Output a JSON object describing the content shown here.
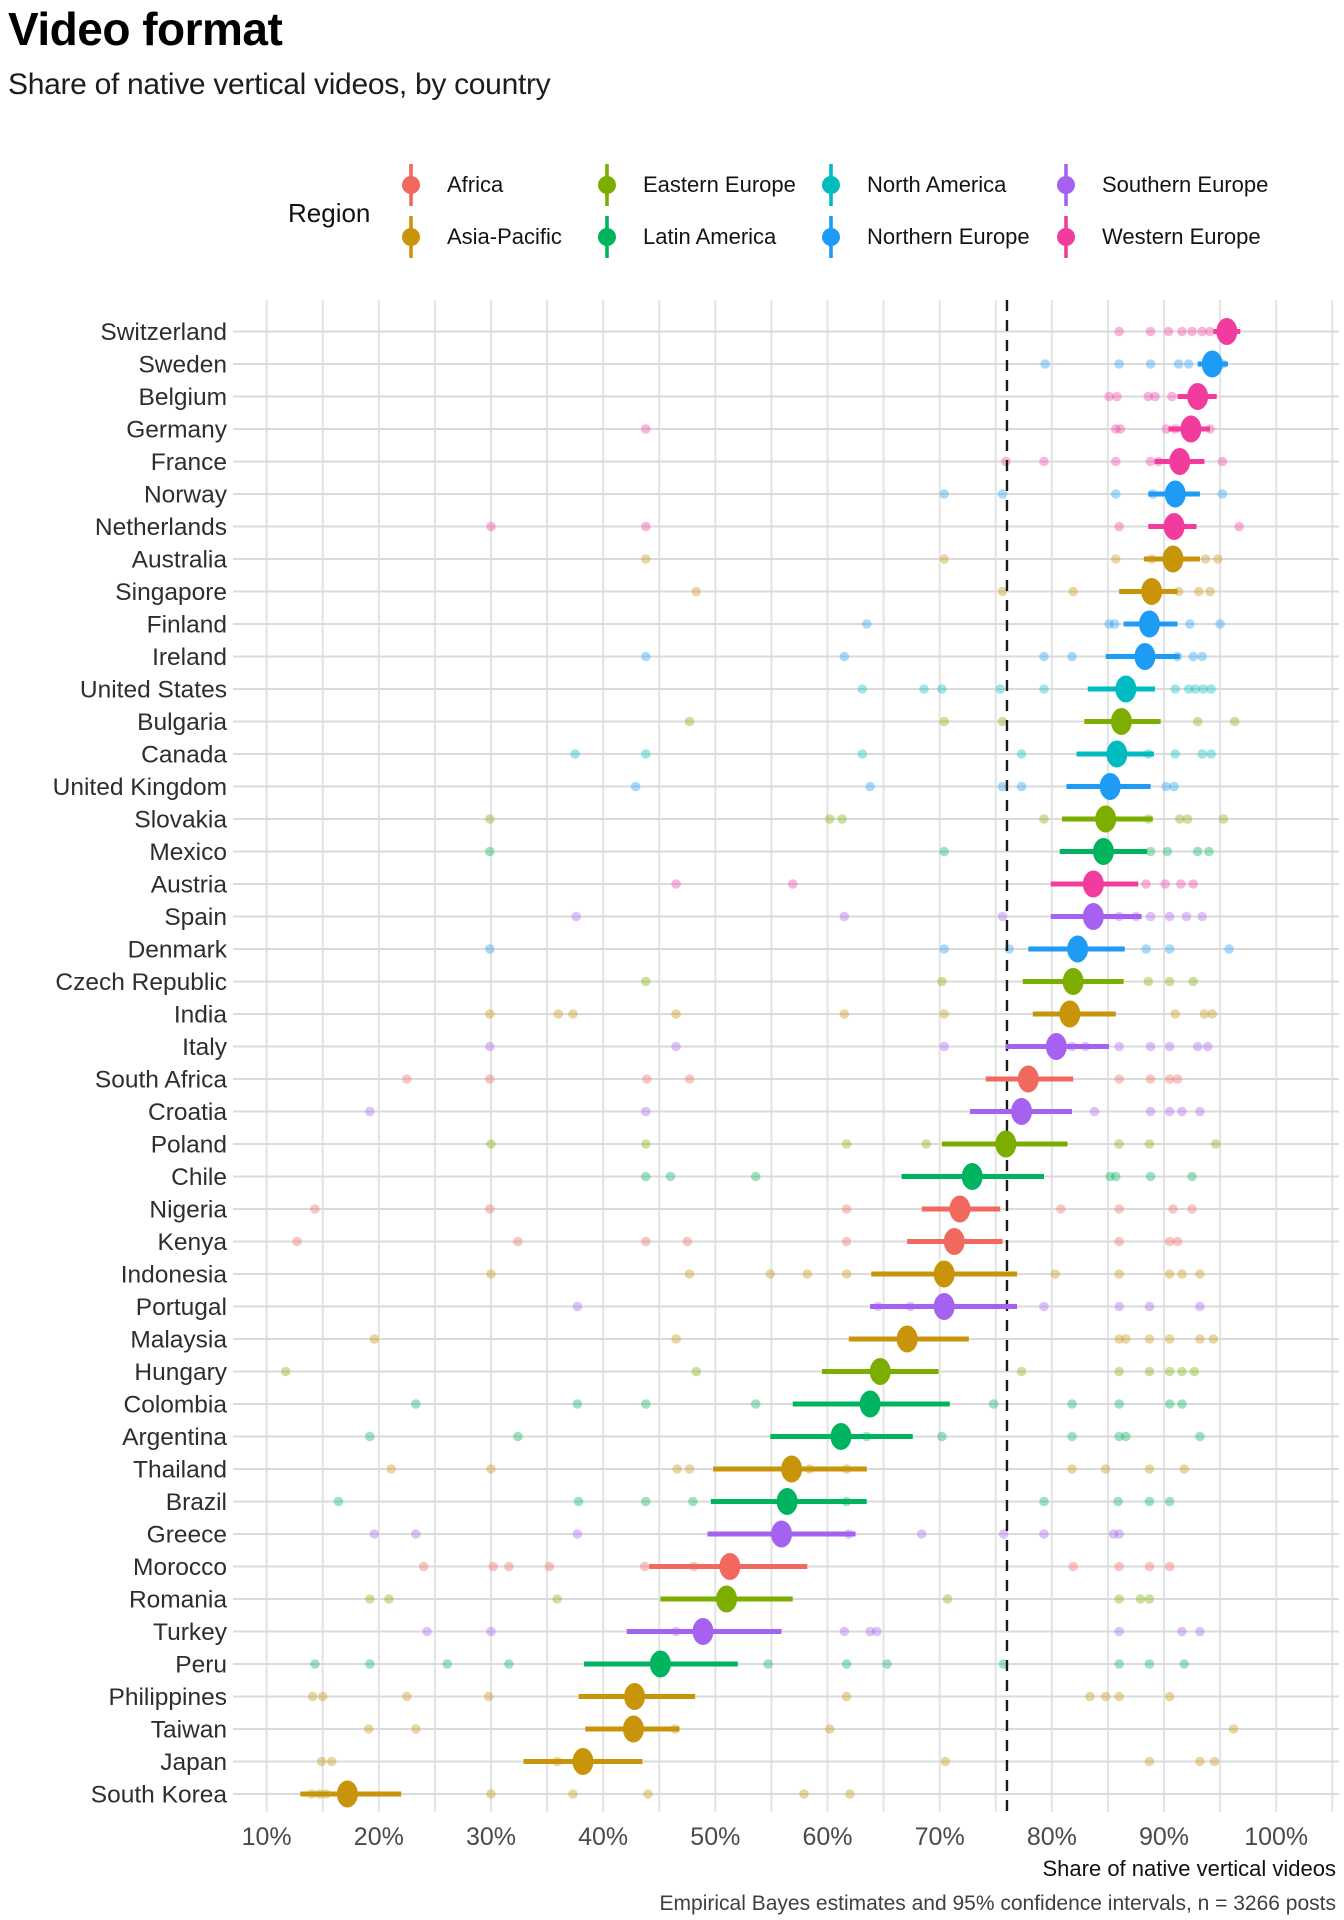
{
  "header": {
    "title": "Video format",
    "subtitle": "Share of native vertical videos, by country"
  },
  "legend": {
    "title": "Region"
  },
  "axis": {
    "label": "Share of native vertical videos"
  },
  "caption": "Empirical Bayes estimates and 95% confidence intervals, n = 3266 posts",
  "chart_data": {
    "type": "scatter",
    "subtype": "dot-range (point estimates with 95% CI and jittered raw points)",
    "title": "Video format",
    "subtitle": "Share of native vertical videos, by country",
    "xlabel": "Share of native vertical videos",
    "x_range": [
      7,
      105.6
    ],
    "grid_step_pct": 5,
    "reference_line_pct": 76,
    "x_ticks": [
      {
        "v": 10,
        "label": "10%"
      },
      {
        "v": 20,
        "label": "20%"
      },
      {
        "v": 30,
        "label": "30%"
      },
      {
        "v": 40,
        "label": "40%"
      },
      {
        "v": 50,
        "label": "50%"
      },
      {
        "v": 60,
        "label": "60%"
      },
      {
        "v": 70,
        "label": "70%"
      },
      {
        "v": 80,
        "label": "80%"
      },
      {
        "v": 90,
        "label": "90%"
      },
      {
        "v": 100,
        "label": "100%"
      }
    ],
    "regions": [
      {
        "name": "Africa",
        "color": "#F1685E"
      },
      {
        "name": "Asia-Pacific",
        "color": "#C8940A"
      },
      {
        "name": "Eastern Europe",
        "color": "#7CAE00"
      },
      {
        "name": "Latin America",
        "color": "#00B45F"
      },
      {
        "name": "North America",
        "color": "#00BCC0"
      },
      {
        "name": "Northern Europe",
        "color": "#1E9BF4"
      },
      {
        "name": "Southern Europe",
        "color": "#A562F0"
      },
      {
        "name": "Western Europe",
        "color": "#F23C9D"
      }
    ],
    "countries": [
      {
        "name": "Switzerland",
        "region": "Western Europe",
        "estimate": 95.6,
        "ci_low": 94.4,
        "ci_high": 96.8,
        "points": [
          86.0,
          88.8,
          90.4,
          91.6,
          92.5,
          93.4,
          94.1
        ]
      },
      {
        "name": "Sweden",
        "region": "Northern Europe",
        "estimate": 94.3,
        "ci_low": 93.0,
        "ci_high": 95.7,
        "points": [
          79.4,
          86.0,
          88.8,
          91.3,
          92.2,
          95.2
        ]
      },
      {
        "name": "Belgium",
        "region": "Western Europe",
        "estimate": 93.0,
        "ci_low": 91.2,
        "ci_high": 94.7,
        "points": [
          85.1,
          85.8,
          88.6,
          89.2,
          90.7
        ]
      },
      {
        "name": "Germany",
        "region": "Western Europe",
        "estimate": 92.4,
        "ci_low": 90.4,
        "ci_high": 94.1,
        "points": [
          43.8,
          85.7,
          86.1,
          90.2,
          91.0,
          94.1
        ]
      },
      {
        "name": "France",
        "region": "Western Europe",
        "estimate": 91.4,
        "ci_low": 89.2,
        "ci_high": 93.6,
        "points": [
          75.9,
          79.3,
          85.7,
          88.8,
          89.5,
          95.2
        ]
      },
      {
        "name": "Norway",
        "region": "Northern Europe",
        "estimate": 91.0,
        "ci_low": 88.6,
        "ci_high": 93.2,
        "points": [
          70.4,
          75.6,
          85.7,
          89.0,
          95.2
        ]
      },
      {
        "name": "Netherlands",
        "region": "Western Europe",
        "estimate": 90.9,
        "ci_low": 88.6,
        "ci_high": 92.9,
        "points": [
          30.0,
          43.8,
          86.0,
          96.7
        ]
      },
      {
        "name": "Australia",
        "region": "Asia-Pacific",
        "estimate": 90.8,
        "ci_low": 88.2,
        "ci_high": 93.2,
        "points": [
          43.8,
          70.4,
          85.7,
          88.9,
          93.7,
          94.8
        ]
      },
      {
        "name": "Singapore",
        "region": "Asia-Pacific",
        "estimate": 88.9,
        "ci_low": 86.0,
        "ci_high": 91.2,
        "points": [
          48.3,
          75.6,
          81.9,
          91.3,
          93.1,
          94.1
        ]
      },
      {
        "name": "Finland",
        "region": "Northern Europe",
        "estimate": 88.7,
        "ci_low": 86.4,
        "ci_high": 91.2,
        "points": [
          63.5,
          85.1,
          85.6,
          92.3,
          95.0
        ]
      },
      {
        "name": "Ireland",
        "region": "Northern Europe",
        "estimate": 88.3,
        "ci_low": 84.8,
        "ci_high": 91.4,
        "points": [
          43.8,
          61.5,
          79.3,
          81.8,
          91.2,
          92.6,
          93.4
        ]
      },
      {
        "name": "United States",
        "region": "North America",
        "estimate": 86.6,
        "ci_low": 83.2,
        "ci_high": 89.2,
        "points": [
          63.1,
          68.6,
          70.2,
          75.4,
          79.3,
          91.0,
          92.2,
          92.8,
          93.5,
          94.2
        ]
      },
      {
        "name": "Bulgaria",
        "region": "Eastern Europe",
        "estimate": 86.2,
        "ci_low": 82.9,
        "ci_high": 89.7,
        "points": [
          47.7,
          70.4,
          75.6,
          93.0,
          96.3
        ]
      },
      {
        "name": "Canada",
        "region": "North America",
        "estimate": 85.8,
        "ci_low": 82.2,
        "ci_high": 89.1,
        "points": [
          37.5,
          43.8,
          63.1,
          77.3,
          88.6,
          91.0,
          93.4,
          94.2
        ]
      },
      {
        "name": "United Kingdom",
        "region": "Northern Europe",
        "estimate": 85.2,
        "ci_low": 81.3,
        "ci_high": 88.8,
        "points": [
          42.9,
          63.8,
          75.6,
          77.3,
          90.2,
          90.9
        ]
      },
      {
        "name": "Slovakia",
        "region": "Eastern Europe",
        "estimate": 84.8,
        "ci_low": 80.9,
        "ci_high": 89.0,
        "points": [
          29.9,
          60.2,
          61.3,
          79.3,
          88.6,
          91.4,
          92.1,
          95.3
        ]
      },
      {
        "name": "Mexico",
        "region": "Latin America",
        "estimate": 84.6,
        "ci_low": 80.7,
        "ci_high": 88.5,
        "points": [
          29.9,
          70.4,
          88.8,
          90.3,
          93.0,
          94.0
        ]
      },
      {
        "name": "Austria",
        "region": "Western Europe",
        "estimate": 83.7,
        "ci_low": 79.9,
        "ci_high": 87.7,
        "points": [
          46.5,
          56.9,
          88.4,
          90.1,
          91.5,
          92.6
        ]
      },
      {
        "name": "Spain",
        "region": "Southern Europe",
        "estimate": 83.7,
        "ci_low": 79.9,
        "ci_high": 88.0,
        "points": [
          37.6,
          61.5,
          75.6,
          86.0,
          87.5,
          88.8,
          90.5,
          92.0,
          93.4
        ]
      },
      {
        "name": "Denmark",
        "region": "Northern Europe",
        "estimate": 82.3,
        "ci_low": 77.9,
        "ci_high": 86.5,
        "points": [
          29.9,
          70.4,
          76.2,
          88.4,
          90.5,
          95.8
        ]
      },
      {
        "name": "Czech Republic",
        "region": "Eastern Europe",
        "estimate": 81.9,
        "ci_low": 77.4,
        "ci_high": 86.4,
        "points": [
          43.8,
          70.2,
          88.6,
          90.5,
          92.6
        ]
      },
      {
        "name": "India",
        "region": "Asia-Pacific",
        "estimate": 81.6,
        "ci_low": 78.3,
        "ci_high": 85.7,
        "points": [
          29.9,
          36.0,
          37.3,
          46.5,
          61.5,
          70.4,
          91.0,
          93.6,
          94.3
        ]
      },
      {
        "name": "Italy",
        "region": "Southern Europe",
        "estimate": 80.4,
        "ci_low": 75.9,
        "ci_high": 85.1,
        "points": [
          29.9,
          46.5,
          70.4,
          81.8,
          83.0,
          86.0,
          88.8,
          90.5,
          93.0,
          93.9
        ]
      },
      {
        "name": "South Africa",
        "region": "Africa",
        "estimate": 77.9,
        "ci_low": 74.1,
        "ci_high": 81.9,
        "points": [
          22.5,
          29.9,
          43.9,
          47.7,
          86.0,
          88.8,
          90.5,
          91.2
        ]
      },
      {
        "name": "Croatia",
        "region": "Southern Europe",
        "estimate": 77.3,
        "ci_low": 72.7,
        "ci_high": 81.8,
        "points": [
          19.2,
          43.8,
          83.8,
          88.8,
          90.5,
          91.6,
          93.2
        ]
      },
      {
        "name": "Poland",
        "region": "Eastern Europe",
        "estimate": 75.9,
        "ci_low": 70.2,
        "ci_high": 81.4,
        "points": [
          30.0,
          43.8,
          61.7,
          68.8,
          86.0,
          88.7,
          94.6
        ]
      },
      {
        "name": "Chile",
        "region": "Latin America",
        "estimate": 72.9,
        "ci_low": 66.6,
        "ci_high": 79.3,
        "points": [
          43.8,
          46.0,
          53.6,
          85.2,
          85.7,
          88.8,
          92.5
        ]
      },
      {
        "name": "Nigeria",
        "region": "Africa",
        "estimate": 71.8,
        "ci_low": 68.4,
        "ci_high": 75.4,
        "points": [
          14.3,
          29.9,
          61.7,
          80.8,
          86.0,
          90.8,
          92.5
        ]
      },
      {
        "name": "Kenya",
        "region": "Africa",
        "estimate": 71.3,
        "ci_low": 67.1,
        "ci_high": 75.6,
        "points": [
          12.7,
          32.4,
          43.8,
          47.5,
          61.7,
          86.0,
          90.5,
          91.2
        ]
      },
      {
        "name": "Indonesia",
        "region": "Asia-Pacific",
        "estimate": 70.4,
        "ci_low": 63.9,
        "ci_high": 76.9,
        "points": [
          30.0,
          47.7,
          54.9,
          58.2,
          61.7,
          80.3,
          86.0,
          90.5,
          91.6,
          93.2
        ]
      },
      {
        "name": "Portugal",
        "region": "Southern Europe",
        "estimate": 70.4,
        "ci_low": 63.8,
        "ci_high": 76.9,
        "points": [
          37.7,
          64.5,
          67.4,
          79.3,
          86.0,
          88.7,
          93.2
        ]
      },
      {
        "name": "Malaysia",
        "region": "Asia-Pacific",
        "estimate": 67.1,
        "ci_low": 61.9,
        "ci_high": 72.6,
        "points": [
          19.6,
          46.5,
          86.0,
          86.6,
          88.7,
          90.5,
          93.2,
          94.4
        ]
      },
      {
        "name": "Hungary",
        "region": "Eastern Europe",
        "estimate": 64.7,
        "ci_low": 59.5,
        "ci_high": 69.9,
        "points": [
          11.7,
          48.3,
          77.3,
          86.0,
          88.7,
          90.5,
          91.6,
          92.7
        ]
      },
      {
        "name": "Colombia",
        "region": "Latin America",
        "estimate": 63.8,
        "ci_low": 56.9,
        "ci_high": 70.9,
        "points": [
          23.3,
          37.7,
          43.8,
          53.6,
          74.8,
          81.8,
          86.0,
          90.5,
          91.6
        ]
      },
      {
        "name": "Argentina",
        "region": "Latin America",
        "estimate": 61.2,
        "ci_low": 54.9,
        "ci_high": 67.6,
        "points": [
          19.2,
          32.4,
          63.5,
          70.2,
          81.8,
          86.0,
          86.6,
          93.2
        ]
      },
      {
        "name": "Thailand",
        "region": "Asia-Pacific",
        "estimate": 56.8,
        "ci_low": 49.8,
        "ci_high": 63.5,
        "points": [
          21.1,
          30.0,
          46.6,
          47.7,
          58.4,
          61.7,
          81.8,
          84.8,
          88.7,
          91.8
        ]
      },
      {
        "name": "Brazil",
        "region": "Latin America",
        "estimate": 56.4,
        "ci_low": 49.6,
        "ci_high": 63.5,
        "points": [
          16.4,
          37.8,
          43.8,
          48.0,
          61.7,
          79.3,
          85.9,
          88.7,
          90.5
        ]
      },
      {
        "name": "Greece",
        "region": "Southern Europe",
        "estimate": 55.9,
        "ci_low": 49.3,
        "ci_high": 62.5,
        "points": [
          19.6,
          23.3,
          37.7,
          61.9,
          68.4,
          75.7,
          79.3,
          85.5,
          86.0
        ]
      },
      {
        "name": "Morocco",
        "region": "Africa",
        "estimate": 51.3,
        "ci_low": 44.1,
        "ci_high": 58.2,
        "points": [
          24.0,
          30.2,
          31.6,
          35.2,
          43.7,
          48.1,
          81.9,
          86.0,
          88.7,
          90.5
        ]
      },
      {
        "name": "Romania",
        "region": "Eastern Europe",
        "estimate": 51.0,
        "ci_low": 45.1,
        "ci_high": 56.9,
        "points": [
          19.2,
          20.9,
          35.9,
          70.7,
          86.0,
          87.9,
          88.7
        ]
      },
      {
        "name": "Turkey",
        "region": "Southern Europe",
        "estimate": 48.9,
        "ci_low": 42.1,
        "ci_high": 55.9,
        "points": [
          24.3,
          30.0,
          46.5,
          61.5,
          63.8,
          64.4,
          86.0,
          91.6,
          93.2
        ]
      },
      {
        "name": "Peru",
        "region": "Latin America",
        "estimate": 45.1,
        "ci_low": 38.3,
        "ci_high": 52.0,
        "points": [
          14.3,
          19.2,
          26.1,
          31.6,
          54.7,
          61.7,
          65.3,
          75.7,
          86.0,
          88.7,
          91.8
        ]
      },
      {
        "name": "Philippines",
        "region": "Asia-Pacific",
        "estimate": 42.8,
        "ci_low": 37.8,
        "ci_high": 48.2,
        "points": [
          14.1,
          15.0,
          22.5,
          29.8,
          61.7,
          83.4,
          84.8,
          86.0,
          90.5
        ]
      },
      {
        "name": "Taiwan",
        "region": "Asia-Pacific",
        "estimate": 42.7,
        "ci_low": 38.4,
        "ci_high": 46.8,
        "points": [
          19.1,
          23.3,
          46.4,
          60.2,
          96.2
        ]
      },
      {
        "name": "Japan",
        "region": "Asia-Pacific",
        "estimate": 38.2,
        "ci_low": 32.9,
        "ci_high": 43.5,
        "points": [
          14.9,
          15.8,
          35.9,
          70.5,
          88.7,
          93.2,
          94.5
        ]
      },
      {
        "name": "South Korea",
        "region": "Asia-Pacific",
        "estimate": 17.2,
        "ci_low": 13.0,
        "ci_high": 22.0,
        "points": [
          14.0,
          14.7,
          15.3,
          30.0,
          37.3,
          44.0,
          57.9,
          62.0
        ]
      }
    ]
  }
}
